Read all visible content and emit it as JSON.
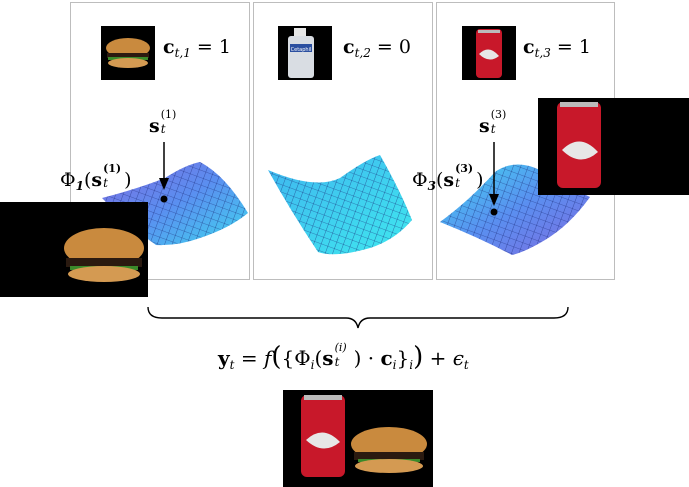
{
  "panels": [
    {
      "object": "burger-thumbnail",
      "label": "c",
      "index": "t,1",
      "rhs": "= 1"
    },
    {
      "object": "bottle-thumbnail",
      "label": "c",
      "index": "t,2",
      "rhs": "= 0",
      "bottle_brand": "Cetaphil"
    },
    {
      "object": "can-thumbnail",
      "label": "c",
      "index": "t,3",
      "rhs": "= 1"
    }
  ],
  "state_labels": {
    "s1": {
      "base": "s",
      "sub": "t",
      "sup": "(1)"
    },
    "s3": {
      "base": "s",
      "sub": "t",
      "sup": "(3)"
    }
  },
  "phi_labels": {
    "phi1": {
      "phi": "Φ",
      "index": "1",
      "arg_base": "s",
      "arg_sub": "t",
      "arg_sup": "(1)"
    },
    "phi3": {
      "phi": "Φ",
      "index": "3",
      "arg_base": "s",
      "arg_sub": "t",
      "arg_sup": "(3)"
    }
  },
  "equation": {
    "lhs": "y",
    "lhs_sub": "t",
    "eq": "=",
    "f": "f",
    "open": "(",
    "set_open": "{",
    "phi": "Φ",
    "phi_sub": "i",
    "arg_open": "(",
    "s": "s",
    "s_sub": "t",
    "s_sup": "(i)",
    "arg_close": ")",
    "dot": "·",
    "c": "c",
    "c_sub": "i",
    "set_close": "}",
    "set_sub": "i",
    "close": ")",
    "plus": "+",
    "eps": "ϵ",
    "eps_sub": "t"
  },
  "colors": {
    "surface_blue": "#3fb5ef",
    "surface_purple": "#7f6be0",
    "surface_cyan": "#3fe0ef",
    "mesh": "#1a2a7a",
    "panel_border": "#bdbdbd"
  }
}
